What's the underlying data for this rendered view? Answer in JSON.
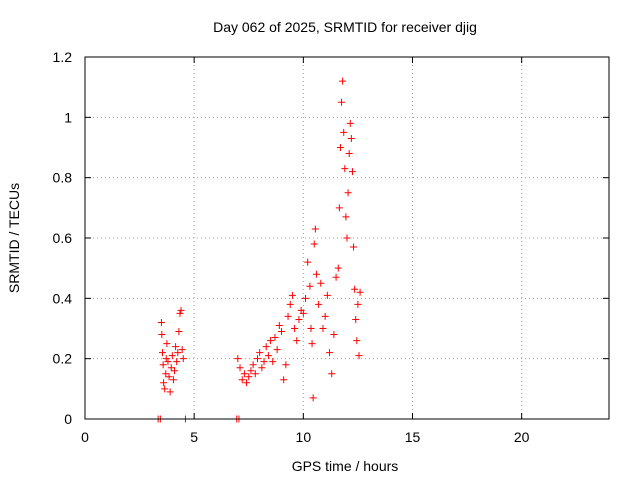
{
  "chart_data": {
    "type": "scatter",
    "title": "Day 062 of 2025, SRMTID for receiver djig",
    "xlabel": "GPS time / hours",
    "ylabel": "SRMTID / TECUs",
    "xlim": [
      0,
      24
    ],
    "ylim": [
      0,
      1.2
    ],
    "grid": true,
    "x_ticks": [
      0,
      5,
      10,
      15,
      20
    ],
    "x_tick_labels": [
      "0",
      "5",
      "10",
      "15",
      "20"
    ],
    "y_ticks": [
      0,
      0.2,
      0.4,
      0.6,
      0.8,
      1.0,
      1.2
    ],
    "y_tick_labels": [
      "0",
      "0.2",
      "0.4",
      "0.6",
      "0.8",
      "1",
      "1.2"
    ],
    "marker": "plus",
    "color": "#ff0000",
    "series": [
      {
        "name": "SRMTID",
        "points": [
          [
            3.35,
            0.0
          ],
          [
            3.45,
            0.0
          ],
          [
            4.6,
            0.0
          ],
          [
            6.95,
            0.0
          ],
          [
            7.05,
            0.0
          ],
          [
            3.5,
            0.32
          ],
          [
            3.52,
            0.28
          ],
          [
            3.55,
            0.22
          ],
          [
            3.58,
            0.18
          ],
          [
            3.6,
            0.12
          ],
          [
            3.65,
            0.1
          ],
          [
            3.7,
            0.15
          ],
          [
            3.72,
            0.2
          ],
          [
            3.75,
            0.25
          ],
          [
            3.8,
            0.19
          ],
          [
            3.85,
            0.14
          ],
          [
            3.9,
            0.09
          ],
          [
            3.95,
            0.17
          ],
          [
            4.0,
            0.21
          ],
          [
            4.05,
            0.13
          ],
          [
            4.1,
            0.16
          ],
          [
            4.15,
            0.24
          ],
          [
            4.2,
            0.19
          ],
          [
            4.25,
            0.22
          ],
          [
            4.3,
            0.29
          ],
          [
            4.35,
            0.35
          ],
          [
            4.4,
            0.36
          ],
          [
            4.45,
            0.23
          ],
          [
            4.5,
            0.2
          ],
          [
            7.0,
            0.2
          ],
          [
            7.1,
            0.17
          ],
          [
            7.2,
            0.13
          ],
          [
            7.3,
            0.15
          ],
          [
            7.4,
            0.12
          ],
          [
            7.5,
            0.14
          ],
          [
            7.6,
            0.16
          ],
          [
            7.7,
            0.18
          ],
          [
            7.8,
            0.15
          ],
          [
            7.9,
            0.2
          ],
          [
            8.0,
            0.22
          ],
          [
            8.1,
            0.17
          ],
          [
            8.2,
            0.19
          ],
          [
            8.3,
            0.24
          ],
          [
            8.4,
            0.21
          ],
          [
            8.5,
            0.26
          ],
          [
            8.6,
            0.19
          ],
          [
            8.7,
            0.27
          ],
          [
            8.8,
            0.23
          ],
          [
            8.9,
            0.31
          ],
          [
            9.0,
            0.29
          ],
          [
            9.1,
            0.13
          ],
          [
            9.2,
            0.18
          ],
          [
            9.3,
            0.34
          ],
          [
            9.4,
            0.38
          ],
          [
            9.5,
            0.41
          ],
          [
            9.6,
            0.3
          ],
          [
            9.7,
            0.26
          ],
          [
            9.8,
            0.33
          ],
          [
            9.9,
            0.36
          ],
          [
            10.0,
            0.35
          ],
          [
            10.1,
            0.4
          ],
          [
            10.2,
            0.52
          ],
          [
            10.3,
            0.44
          ],
          [
            10.35,
            0.3
          ],
          [
            10.4,
            0.25
          ],
          [
            10.45,
            0.07
          ],
          [
            10.5,
            0.58
          ],
          [
            10.55,
            0.63
          ],
          [
            10.6,
            0.48
          ],
          [
            10.7,
            0.38
          ],
          [
            10.8,
            0.45
          ],
          [
            10.9,
            0.3
          ],
          [
            11.0,
            0.34
          ],
          [
            11.1,
            0.41
          ],
          [
            11.2,
            0.22
          ],
          [
            11.3,
            0.15
          ],
          [
            11.4,
            0.28
          ],
          [
            11.5,
            0.47
          ],
          [
            11.6,
            0.5
          ],
          [
            11.65,
            0.7
          ],
          [
            11.7,
            0.9
          ],
          [
            11.75,
            1.05
          ],
          [
            11.8,
            1.12
          ],
          [
            11.85,
            0.95
          ],
          [
            11.9,
            0.83
          ],
          [
            11.95,
            0.67
          ],
          [
            12.0,
            0.6
          ],
          [
            12.05,
            0.75
          ],
          [
            12.1,
            0.88
          ],
          [
            12.15,
            0.98
          ],
          [
            12.2,
            0.93
          ],
          [
            12.25,
            0.82
          ],
          [
            12.3,
            0.57
          ],
          [
            12.35,
            0.43
          ],
          [
            12.4,
            0.33
          ],
          [
            12.45,
            0.26
          ],
          [
            12.5,
            0.38
          ],
          [
            12.55,
            0.21
          ],
          [
            12.6,
            0.42
          ]
        ]
      }
    ]
  }
}
